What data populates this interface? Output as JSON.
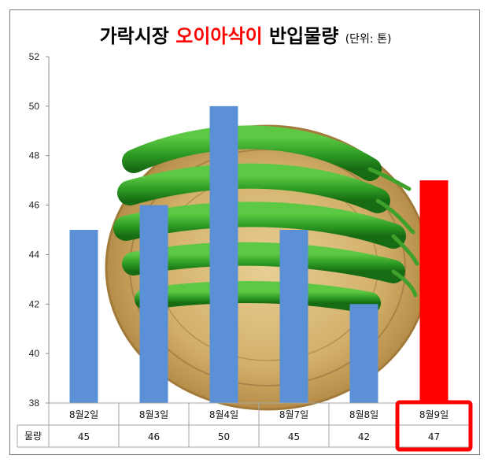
{
  "title": {
    "part1": "가락시장 ",
    "highlight": "오이아삭이",
    "part2": " 반입물량",
    "unit": "(단위: 톤)"
  },
  "colors": {
    "bar": "#5b8fd6",
    "highlight_bar": "#ff0000",
    "highlight_box": "#ff0000"
  },
  "chart_data": {
    "type": "bar",
    "categories": [
      "8월2일",
      "8월3일",
      "8월4일",
      "8월7일",
      "8월8일",
      "8월9일"
    ],
    "series": [
      {
        "name": "물량",
        "values": [
          45,
          46,
          50,
          45,
          42,
          47
        ]
      }
    ],
    "highlight_index": 5,
    "ylim": [
      38,
      52
    ],
    "yticks": [
      38,
      40,
      42,
      44,
      46,
      48,
      50,
      52
    ],
    "grid": false,
    "table_row_label": "물량",
    "data_table": true
  }
}
